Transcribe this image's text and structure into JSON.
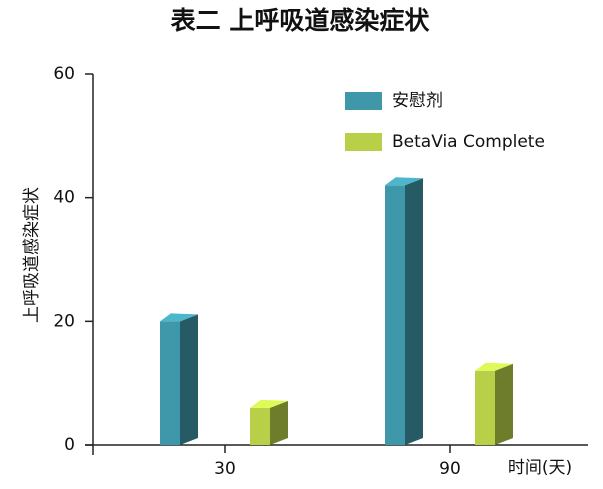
{
  "chart_data": {
    "type": "bar3d",
    "title": "表二 上呼吸道感染症状",
    "y_label": "上呼吸道感染症状",
    "x_label": "时间(天)",
    "categories": [
      "30",
      "90"
    ],
    "series": [
      {
        "name": "安慰剂",
        "color": "#3f98a9",
        "values": [
          20,
          42
        ]
      },
      {
        "name": "BetaVia Complete",
        "color": "#b8d048",
        "values": [
          6,
          12
        ]
      }
    ],
    "ylim": [
      0,
      60
    ],
    "yticks": [
      0,
      20,
      40,
      60
    ],
    "grid": false,
    "legend": "top-right"
  }
}
